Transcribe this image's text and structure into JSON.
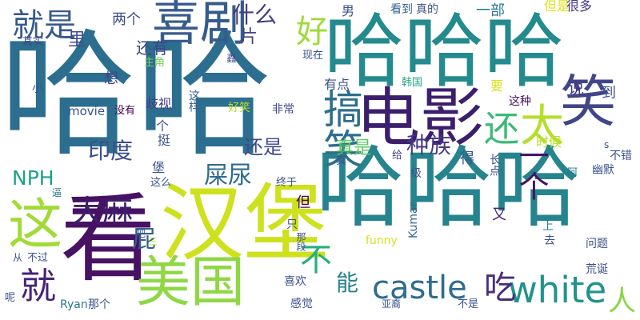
{
  "wordcloud": {
    "words": [
      {
        "text": "哈哈",
        "color": "#2c6e8f"
      },
      {
        "text": "哈哈哈",
        "color": "#238a8d"
      },
      {
        "text": "哈哈哈",
        "color": "#25848e"
      },
      {
        "text": "看",
        "color": "#471164"
      },
      {
        "text": "汉堡",
        "color": "#cde11d"
      },
      {
        "text": "电影",
        "color": "#3b1f6d"
      },
      {
        "text": "美国",
        "color": "#8fd744"
      },
      {
        "text": "笑",
        "color": "#404688"
      },
      {
        "text": "太",
        "color": "#b5de2b"
      },
      {
        "text": "喜剧",
        "color": "#365c8d"
      },
      {
        "text": "这",
        "color": "#a2da37"
      },
      {
        "text": "搞笑",
        "color": "#2e6e8e"
      },
      {
        "text": "castle",
        "color": "#2f6c8e"
      },
      {
        "text": "white",
        "color": "#20938c"
      },
      {
        "text": "就是",
        "color": "#38588c"
      },
      {
        "text": "大麻",
        "color": "#3b1f6d"
      },
      {
        "text": "就",
        "color": "#482475"
      },
      {
        "text": "好",
        "color": "#a0da39"
      },
      {
        "text": "还",
        "color": "#3aba76"
      },
      {
        "text": "屎尿",
        "color": "#2f6b8e"
      },
      {
        "text": "种族",
        "color": "#443983"
      },
      {
        "text": "NPH",
        "color": "#1fa187"
      },
      {
        "text": "吃",
        "color": "#472e7c"
      },
      {
        "text": "印度",
        "color": "#3d4e8a"
      },
      {
        "text": "什么",
        "color": "#433e85"
      },
      {
        "text": "不",
        "color": "#28ae80"
      },
      {
        "text": "能",
        "color": "#26828e"
      },
      {
        "text": "人",
        "color": "#8ad547"
      },
      {
        "text": "还是",
        "color": "#3e4989"
      },
      {
        "text": "一个",
        "color": "#471365"
      },
      {
        "text": "真是",
        "color": "#5cc863"
      },
      {
        "text": "屁",
        "color": "#34608d"
      },
      {
        "text": "里",
        "color": "#3e4a89"
      },
      {
        "text": "片",
        "color": "#414487"
      },
      {
        "text": "还有",
        "color": "#404588"
      },
      {
        "text": "两个",
        "color": "#3c4f8a"
      },
      {
        "text": "男",
        "color": "#3b528b"
      },
      {
        "text": "看到",
        "color": "#33638d"
      },
      {
        "text": "真的",
        "color": "#3b528b"
      },
      {
        "text": "一部",
        "color": "#2a768e"
      },
      {
        "text": "但是",
        "color": "#dde318"
      },
      {
        "text": "很多",
        "color": "#453781"
      },
      {
        "text": "其实",
        "color": "#3f4889"
      },
      {
        "text": "主角",
        "color": "#73d056"
      },
      {
        "text": "鑫",
        "color": "#3e4c8a"
      },
      {
        "text": "现在",
        "color": "#3b528b"
      },
      {
        "text": "有点",
        "color": "#3b528b"
      },
      {
        "text": "韩国",
        "color": "#21a585"
      },
      {
        "text": "说",
        "color": "#453781"
      },
      {
        "text": "到",
        "color": "#3c508b"
      },
      {
        "text": "想",
        "color": "#3f4788"
      },
      {
        "text": "要",
        "color": "#d8e219"
      },
      {
        "text": "这种",
        "color": "#471164"
      },
      {
        "text": "小",
        "color": "#3b528b"
      },
      {
        "text": "movie",
        "color": "#3b528b"
      },
      {
        "text": "没有",
        "color": "#440154"
      },
      {
        "text": "歧视",
        "color": "#433d84"
      },
      {
        "text": "这样",
        "color": "#355f8d"
      },
      {
        "text": "好笑",
        "color": "#b8de29"
      },
      {
        "text": "非常",
        "color": "#404688"
      },
      {
        "text": "个",
        "color": "#3b528b"
      },
      {
        "text": "挺",
        "color": "#3b528b"
      },
      {
        "text": "给",
        "color": "#414287"
      },
      {
        "text": "真",
        "color": "#3b528b"
      },
      {
        "text": "得",
        "color": "#3b528b"
      },
      {
        "text": "长点",
        "color": "#3b528b"
      },
      {
        "text": "时候",
        "color": "#bade28"
      },
      {
        "text": "不错",
        "color": "#3b528b"
      },
      {
        "text": "s",
        "color": "#3b528b"
      },
      {
        "text": "阿",
        "color": "#2a788e"
      },
      {
        "text": "幽默",
        "color": "#3b528b"
      },
      {
        "text": "级",
        "color": "#3b528b"
      },
      {
        "text": "堡",
        "color": "#3b528b"
      },
      {
        "text": "这么",
        "color": "#3b528b"
      },
      {
        "text": "终于",
        "color": "#3b528b"
      },
      {
        "text": "但",
        "color": "#440154"
      },
      {
        "text": "逼",
        "color": "#2a788e"
      },
      {
        "text": "吧",
        "color": "#3b528b"
      },
      {
        "text": "三",
        "color": "#b5de2b"
      },
      {
        "text": "只",
        "color": "#3b528b"
      },
      {
        "text": "那段",
        "color": "#3b528b"
      },
      {
        "text": "funny",
        "color": "#d2e21b"
      },
      {
        "text": "Kumar",
        "color": "#31688e"
      },
      {
        "text": "又",
        "color": "#482475"
      },
      {
        "text": "上",
        "color": "#2a788e"
      },
      {
        "text": "去",
        "color": "#3b528b"
      },
      {
        "text": "问题",
        "color": "#3b528b"
      },
      {
        "text": "荒诞",
        "color": "#3b528b"
      },
      {
        "text": "从",
        "color": "#3b528b"
      },
      {
        "text": "不过",
        "color": "#3b528b"
      },
      {
        "text": "喜欢",
        "color": "#3b528b"
      },
      {
        "text": "呢",
        "color": "#3b528b"
      },
      {
        "text": "Ryan",
        "color": "#2a788e"
      },
      {
        "text": "那个",
        "color": "#3b528b"
      },
      {
        "text": "感觉",
        "color": "#3b528b"
      },
      {
        "text": "亚裔",
        "color": "#3b528b"
      },
      {
        "text": "不是",
        "color": "#3b528b"
      }
    ]
  }
}
